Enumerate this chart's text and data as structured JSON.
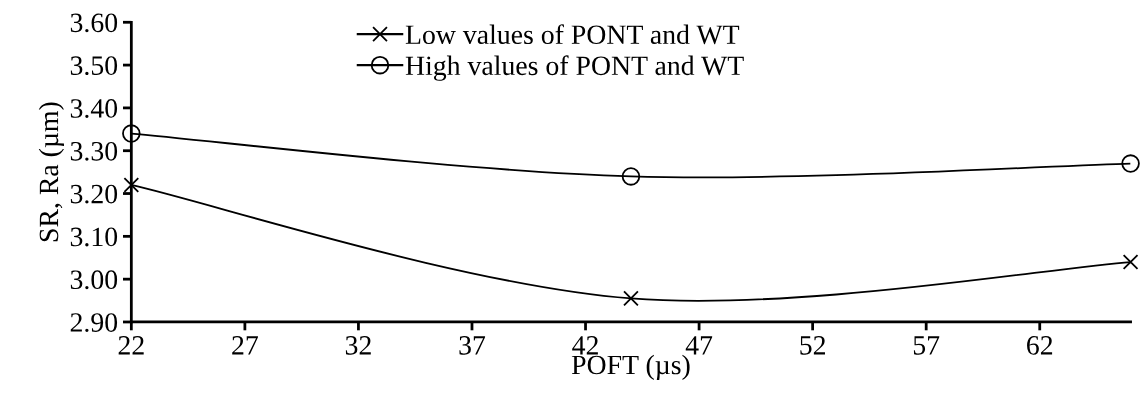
{
  "chart_data": {
    "type": "line",
    "xlabel": "POFT (µs)",
    "ylabel": "SR, Ra (µm)",
    "x": [
      22,
      44,
      66
    ],
    "series": [
      {
        "name": "Low values of PONT and WT",
        "color": "#000000",
        "marker": "cross",
        "values": [
          3.22,
          2.955,
          3.04
        ]
      },
      {
        "name": "High values of PONT and WT",
        "color": "#000000",
        "marker": "circle",
        "values": [
          3.34,
          3.24,
          3.27
        ]
      }
    ],
    "xlim": [
      22,
      66
    ],
    "xticks": [
      22,
      27,
      32,
      37,
      42,
      47,
      52,
      57,
      62
    ],
    "ylim": [
      2.9,
      3.6
    ],
    "yticks": [
      {
        "value": 2.9,
        "label": "2.90"
      },
      {
        "value": 3.0,
        "label": "3.00"
      },
      {
        "value": 3.1,
        "label": "3.10"
      },
      {
        "value": 3.2,
        "label": "3.20"
      },
      {
        "value": 3.3,
        "label": "3.30"
      },
      {
        "value": 3.4,
        "label": "3.40"
      },
      {
        "value": 3.5,
        "label": "3.50"
      },
      {
        "value": 3.6,
        "label": "3.60"
      }
    ],
    "legend": "top",
    "grid": false,
    "line_style": "solid"
  }
}
